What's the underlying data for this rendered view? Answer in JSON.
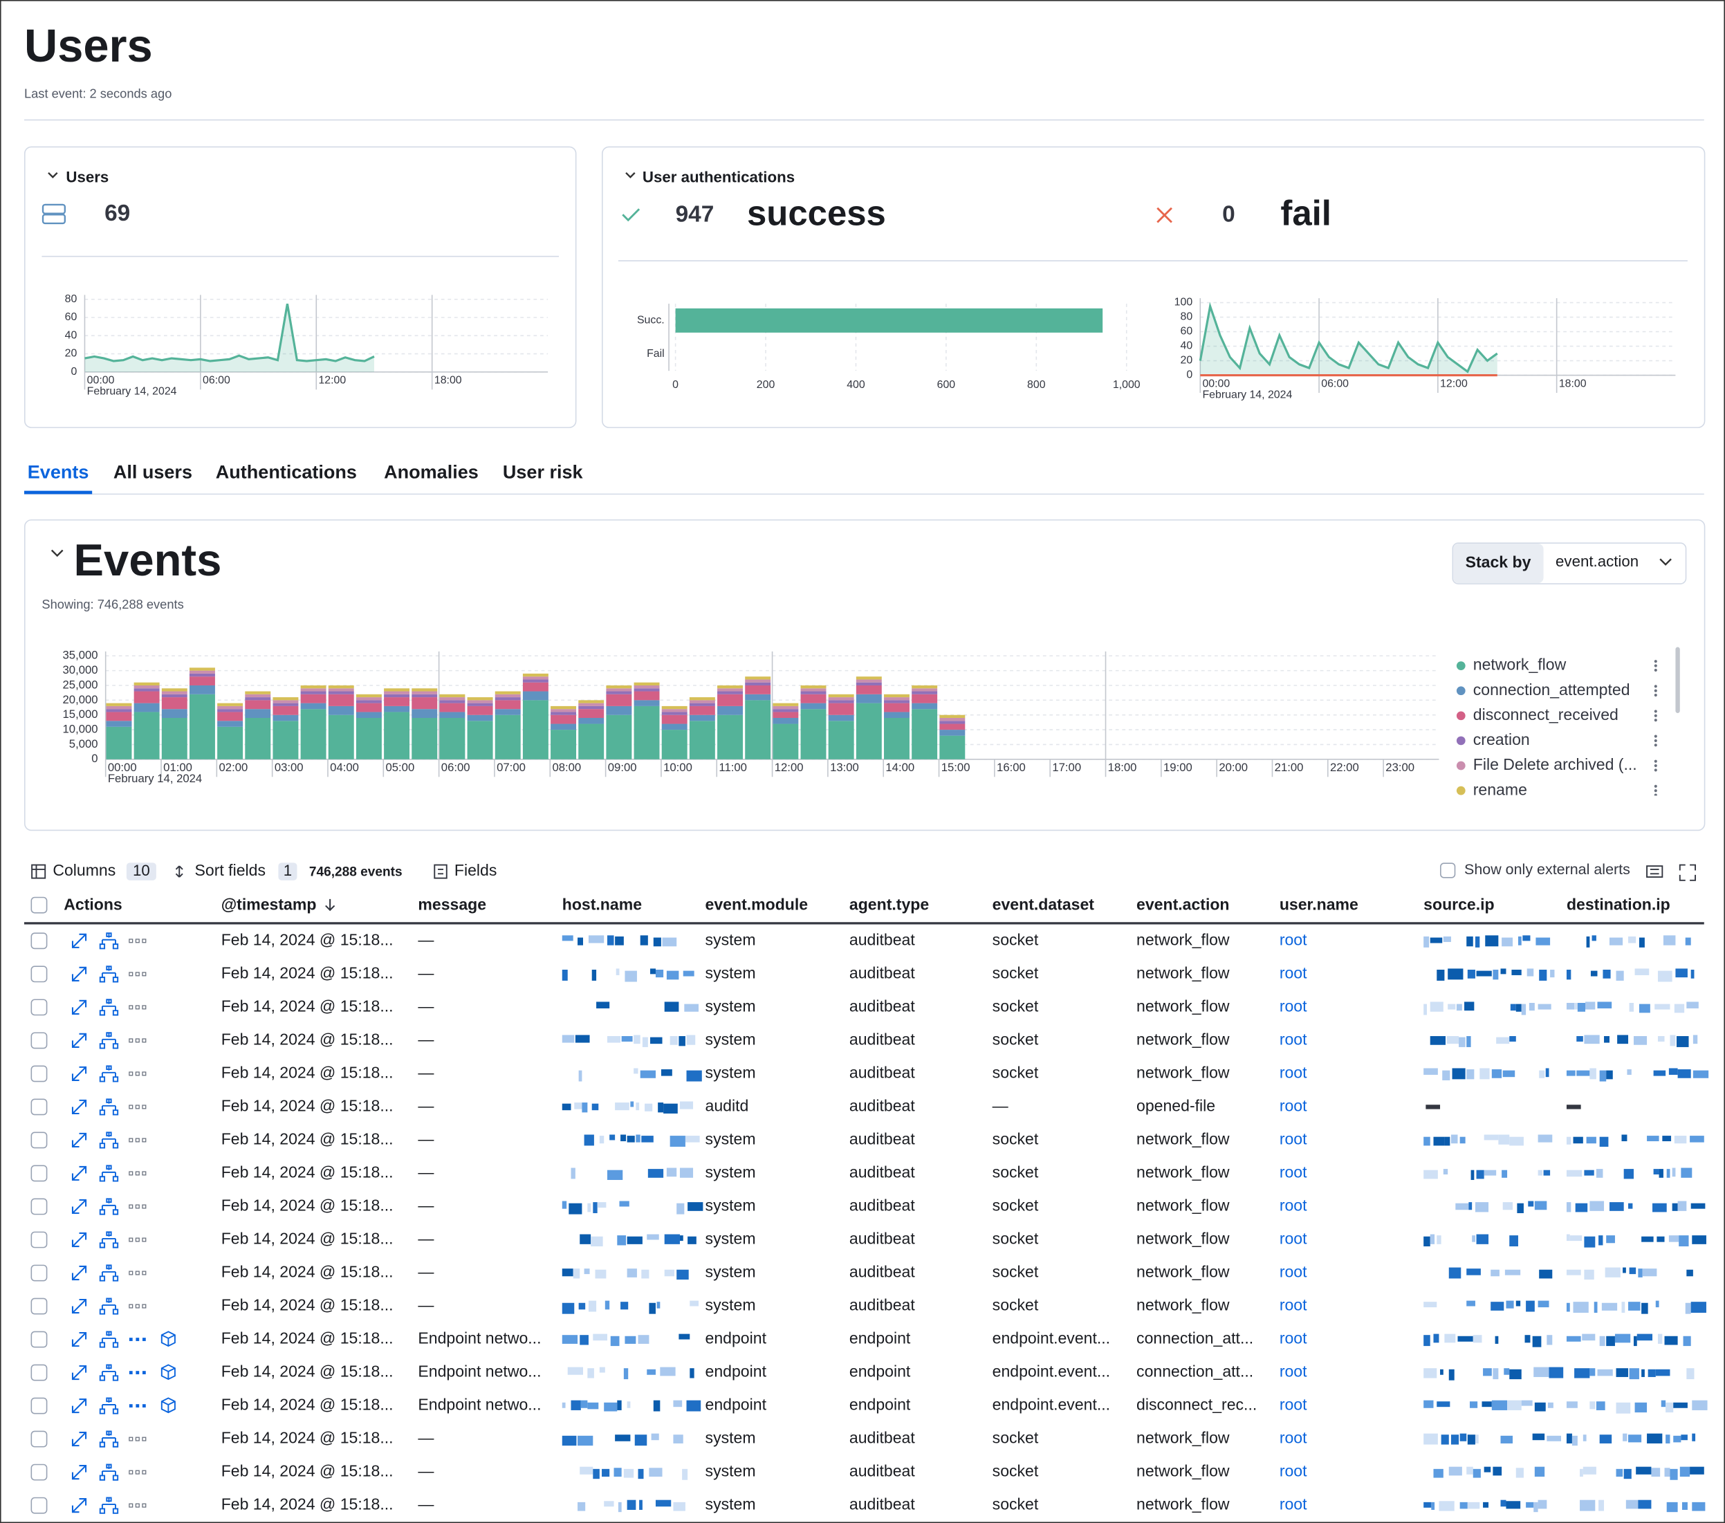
{
  "header": {
    "title": "Users",
    "subtitle": "Last event: 2 seconds ago"
  },
  "kpis": {
    "users_title": "Users",
    "users_count": 69,
    "auth_title": "User authentications",
    "success_count": 947,
    "success_label": "success",
    "fail_count": 0,
    "fail_label": "fail"
  },
  "tabs": {
    "items": [
      "Events",
      "All users",
      "Authentications",
      "Anomalies",
      "User risk"
    ],
    "active": 0
  },
  "events_panel": {
    "title": "Events",
    "subtitle": "Showing: 746,288 events",
    "stack_by_label": "Stack by",
    "stack_by_value": "event.action"
  },
  "chart_data": [
    {
      "type": "line",
      "color": "#54b399",
      "x": [
        0,
        0.5,
        1,
        1.5,
        2,
        2.5,
        3,
        3.5,
        4,
        4.5,
        5,
        5.5,
        6,
        6.5,
        7,
        7.5,
        8,
        8.5,
        9,
        9.5,
        10,
        10.5,
        11,
        11.5,
        12,
        12.5,
        13,
        13.5,
        14,
        14.5,
        15
      ],
      "values": [
        15,
        17,
        15,
        12,
        13,
        17,
        13,
        15,
        13,
        15,
        14,
        13,
        14,
        12,
        13,
        14,
        18,
        14,
        15,
        16,
        13,
        75,
        13,
        12,
        13,
        14,
        12,
        16,
        13,
        12,
        17
      ],
      "xlim": [
        0,
        24
      ],
      "xticks": [
        {
          "value": 0,
          "label": "00:00"
        },
        {
          "value": 6,
          "label": "06:00"
        },
        {
          "value": 12,
          "label": "12:00"
        },
        {
          "value": 18,
          "label": "18:00"
        }
      ],
      "x_date_label": "February 14, 2024",
      "ylim": [
        0,
        80
      ],
      "yticks": [
        0,
        20,
        40,
        60,
        80
      ],
      "grid": true
    },
    {
      "type": "bar",
      "orientation": "horizontal",
      "color": "#54b399",
      "categories": [
        "Succ.",
        "Fail"
      ],
      "values": [
        947,
        0
      ],
      "xlim": [
        0,
        1000
      ],
      "xticks": [
        0,
        200,
        400,
        600,
        800,
        {
          "value": 1000,
          "label": "1,000"
        }
      ],
      "grid": true
    },
    {
      "type": "line",
      "x": [
        0,
        0.5,
        1,
        1.5,
        2,
        2.5,
        3,
        3.5,
        4,
        4.5,
        5,
        5.5,
        6,
        6.5,
        7,
        7.5,
        8,
        8.5,
        9,
        9.5,
        10,
        10.5,
        11,
        11.5,
        12,
        12.5,
        13,
        13.5,
        14,
        14.5,
        15
      ],
      "series": [
        {
          "color": "#54b399",
          "values": [
            20,
            95,
            55,
            25,
            10,
            65,
            30,
            15,
            55,
            25,
            15,
            10,
            45,
            25,
            15,
            10,
            45,
            30,
            15,
            10,
            45,
            25,
            15,
            10,
            45,
            25,
            15,
            5,
            35,
            20,
            30
          ]
        },
        {
          "color": "#e7664c",
          "values": [
            0,
            0,
            0,
            0,
            0,
            0,
            0,
            0,
            0,
            0,
            0,
            0,
            0,
            0,
            0,
            0,
            0,
            0,
            0,
            0,
            0,
            0,
            0,
            0,
            0,
            0,
            0,
            0,
            0,
            0,
            0
          ]
        }
      ],
      "xlim": [
        0,
        24
      ],
      "xticks": [
        {
          "value": 0,
          "label": "00:00"
        },
        {
          "value": 6,
          "label": "06:00"
        },
        {
          "value": 12,
          "label": "12:00"
        },
        {
          "value": 18,
          "label": "18:00"
        }
      ],
      "x_date_label": "February 14, 2024",
      "ylim": [
        0,
        100
      ],
      "yticks": [
        0,
        20,
        40,
        60,
        80,
        100
      ],
      "grid": true
    },
    {
      "type": "bar",
      "stacked": true,
      "x": [
        0,
        0.5,
        1,
        1.5,
        2,
        2.5,
        3,
        3.5,
        4,
        4.5,
        5,
        5.5,
        6,
        6.5,
        7,
        7.5,
        8,
        8.5,
        9,
        9.5,
        10,
        10.5,
        11,
        11.5,
        12,
        12.5,
        13,
        13.5,
        14,
        14.5,
        15
      ],
      "series": [
        {
          "name": "network_flow",
          "color": "#54b399",
          "values": [
            11000,
            16000,
            14000,
            22000,
            11000,
            14000,
            13000,
            17000,
            15000,
            14000,
            16000,
            14000,
            14000,
            13000,
            15000,
            20000,
            10000,
            12000,
            15000,
            18000,
            10000,
            13000,
            15000,
            20000,
            12000,
            17000,
            13000,
            19000,
            14000,
            17000,
            8000
          ]
        },
        {
          "name": "connection_attempted",
          "color": "#6092c0",
          "values": [
            2000,
            3000,
            3000,
            3000,
            2000,
            3000,
            2000,
            2000,
            3000,
            2000,
            2000,
            3000,
            2000,
            2000,
            2000,
            3000,
            2000,
            2000,
            3000,
            2000,
            2000,
            2000,
            3000,
            2000,
            2000,
            2000,
            2000,
            3000,
            2000,
            2000,
            2000
          ]
        },
        {
          "name": "disconnect_received",
          "color": "#d36086",
          "values": [
            3000,
            4000,
            4000,
            3000,
            3000,
            3000,
            3000,
            3000,
            4000,
            3000,
            3000,
            4000,
            3000,
            3000,
            3000,
            3000,
            3000,
            3000,
            4000,
            3000,
            3000,
            3000,
            4000,
            3000,
            2000,
            3000,
            4000,
            3000,
            3000,
            3000,
            2000
          ]
        },
        {
          "name": "creation",
          "color": "#9170b8",
          "values": [
            1000,
            1000,
            1000,
            1000,
            1000,
            1000,
            1000,
            1000,
            1000,
            1000,
            1000,
            1000,
            1000,
            1000,
            1000,
            1000,
            1000,
            1000,
            1000,
            1000,
            1000,
            1000,
            1000,
            1000,
            1000,
            1000,
            1000,
            1000,
            1000,
            1000,
            1000
          ]
        },
        {
          "name": "File Delete archived (...",
          "color": "#ca8eae",
          "values": [
            1000,
            1000,
            1000,
            1000,
            1000,
            1000,
            1000,
            1000,
            1000,
            1000,
            1000,
            1000,
            1000,
            1000,
            1000,
            1000,
            1000,
            1000,
            1000,
            1000,
            1000,
            1000,
            1000,
            1000,
            1000,
            1000,
            1000,
            1000,
            1000,
            1000,
            1000
          ]
        },
        {
          "name": "rename",
          "color": "#d6bf57",
          "values": [
            1000,
            1000,
            1000,
            1000,
            1000,
            1000,
            1000,
            1000,
            1000,
            1000,
            1000,
            1000,
            1000,
            1000,
            1000,
            1000,
            1000,
            1000,
            1000,
            1000,
            1000,
            1000,
            1000,
            1000,
            1000,
            1000,
            1000,
            1000,
            1000,
            1000,
            1000
          ]
        }
      ],
      "xlim": [
        0,
        24
      ],
      "xticks": [
        {
          "value": 0,
          "label": "00:00"
        },
        {
          "value": 1,
          "label": "01:00"
        },
        {
          "value": 2,
          "label": "02:00"
        },
        {
          "value": 3,
          "label": "03:00"
        },
        {
          "value": 4,
          "label": "04:00"
        },
        {
          "value": 5,
          "label": "05:00"
        },
        {
          "value": 6,
          "label": "06:00"
        },
        {
          "value": 7,
          "label": "07:00"
        },
        {
          "value": 8,
          "label": "08:00"
        },
        {
          "value": 9,
          "label": "09:00"
        },
        {
          "value": 10,
          "label": "10:00"
        },
        {
          "value": 11,
          "label": "11:00"
        },
        {
          "value": 12,
          "label": "12:00"
        },
        {
          "value": 13,
          "label": "13:00"
        },
        {
          "value": 14,
          "label": "14:00"
        },
        {
          "value": 15,
          "label": "15:00"
        },
        {
          "value": 16,
          "label": "16:00"
        },
        {
          "value": 17,
          "label": "17:00"
        },
        {
          "value": 18,
          "label": "18:00"
        },
        {
          "value": 19,
          "label": "19:00"
        },
        {
          "value": 20,
          "label": "20:00"
        },
        {
          "value": 21,
          "label": "21:00"
        },
        {
          "value": 22,
          "label": "22:00"
        },
        {
          "value": 23,
          "label": "23:00"
        }
      ],
      "x_date_label": "February 14, 2024",
      "ylim": [
        0,
        35000
      ],
      "yticks": [
        0,
        {
          "value": 5000,
          "label": "5,000"
        },
        {
          "value": 10000,
          "label": "10,000"
        },
        {
          "value": 15000,
          "label": "15,000"
        },
        {
          "value": 20000,
          "label": "20,000"
        },
        {
          "value": 25000,
          "label": "25,000"
        },
        {
          "value": 30000,
          "label": "30,000"
        },
        {
          "value": 35000,
          "label": "35,000"
        }
      ],
      "grid": true,
      "legend": "right"
    }
  ],
  "toolbar": {
    "columns": "Columns",
    "columns_count": 10,
    "sort": "Sort fields",
    "sort_count": 1,
    "event_count": "746,288 events",
    "fields": "Fields",
    "external_alerts": "Show only external alerts"
  },
  "table": {
    "headers": [
      "Actions",
      "@timestamp",
      "message",
      "host.name",
      "event.module",
      "agent.type",
      "event.dataset",
      "event.action",
      "user.name",
      "source.ip",
      "destination.ip"
    ],
    "rows": [
      [
        "Feb 14, 2024 @ 15:18...",
        "—",
        "system",
        "auditbeat",
        "socket",
        "network_flow",
        "root"
      ],
      [
        "Feb 14, 2024 @ 15:18...",
        "—",
        "system",
        "auditbeat",
        "socket",
        "network_flow",
        "root"
      ],
      [
        "Feb 14, 2024 @ 15:18...",
        "—",
        "system",
        "auditbeat",
        "socket",
        "network_flow",
        "root"
      ],
      [
        "Feb 14, 2024 @ 15:18...",
        "—",
        "system",
        "auditbeat",
        "socket",
        "network_flow",
        "root"
      ],
      [
        "Feb 14, 2024 @ 15:18...",
        "—",
        "system",
        "auditbeat",
        "socket",
        "network_flow",
        "root"
      ],
      [
        "Feb 14, 2024 @ 15:18...",
        "—",
        "auditd",
        "auditbeat",
        "—",
        "opened-file",
        "root"
      ],
      [
        "Feb 14, 2024 @ 15:18...",
        "—",
        "system",
        "auditbeat",
        "socket",
        "network_flow",
        "root"
      ],
      [
        "Feb 14, 2024 @ 15:18...",
        "—",
        "system",
        "auditbeat",
        "socket",
        "network_flow",
        "root"
      ],
      [
        "Feb 14, 2024 @ 15:18...",
        "—",
        "system",
        "auditbeat",
        "socket",
        "network_flow",
        "root"
      ],
      [
        "Feb 14, 2024 @ 15:18...",
        "—",
        "system",
        "auditbeat",
        "socket",
        "network_flow",
        "root"
      ],
      [
        "Feb 14, 2024 @ 15:18...",
        "—",
        "system",
        "auditbeat",
        "socket",
        "network_flow",
        "root"
      ],
      [
        "Feb 14, 2024 @ 15:18...",
        "—",
        "system",
        "auditbeat",
        "socket",
        "network_flow",
        "root"
      ],
      [
        "Feb 14, 2024 @ 15:18...",
        "Endpoint netwo...",
        "endpoint",
        "endpoint",
        "endpoint.event...",
        "connection_att...",
        "root"
      ],
      [
        "Feb 14, 2024 @ 15:18...",
        "Endpoint netwo...",
        "endpoint",
        "endpoint",
        "endpoint.event...",
        "connection_att...",
        "root"
      ],
      [
        "Feb 14, 2024 @ 15:18...",
        "Endpoint netwo...",
        "endpoint",
        "endpoint",
        "endpoint.event...",
        "disconnect_rec...",
        "root"
      ],
      [
        "Feb 14, 2024 @ 15:18...",
        "—",
        "system",
        "auditbeat",
        "socket",
        "network_flow",
        "root"
      ],
      [
        "Feb 14, 2024 @ 15:18...",
        "—",
        "system",
        "auditbeat",
        "socket",
        "network_flow",
        "root"
      ],
      [
        "Feb 14, 2024 @ 15:18...",
        "—",
        "system",
        "auditbeat",
        "socket",
        "network_flow",
        "root"
      ]
    ]
  }
}
